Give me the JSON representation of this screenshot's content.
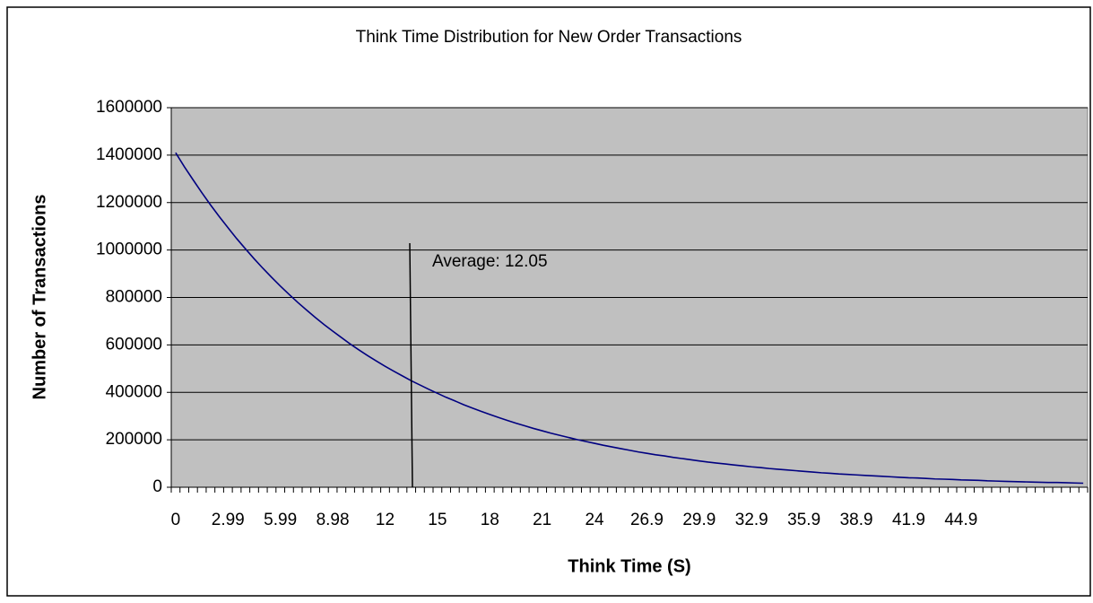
{
  "chart_data": {
    "type": "line",
    "title": "Think Time Distribution for New Order Transactions",
    "x_label": "Think Time (S)",
    "y_label": "Number of Transactions",
    "annotation": "Average: 12.05",
    "categories": [
      "0",
      null,
      null,
      null,
      null,
      null,
      "2.99",
      null,
      null,
      null,
      null,
      null,
      "5.99",
      null,
      null,
      null,
      null,
      null,
      "8.98",
      null,
      null,
      null,
      null,
      null,
      "12",
      null,
      null,
      null,
      null,
      null,
      "15",
      null,
      null,
      null,
      null,
      null,
      "18",
      null,
      null,
      null,
      null,
      null,
      "21",
      null,
      null,
      null,
      null,
      null,
      "24",
      null,
      null,
      null,
      null,
      null,
      "26.9",
      null,
      null,
      null,
      null,
      null,
      "29.9",
      null,
      null,
      null,
      null,
      null,
      "32.9",
      null,
      null,
      null,
      null,
      null,
      "35.9",
      null,
      null,
      null,
      null,
      null,
      "38.9",
      null,
      null,
      null,
      null,
      null,
      "41.9",
      null,
      null,
      null,
      null,
      null,
      "44.9",
      null,
      null,
      null,
      null,
      null,
      null,
      null,
      null,
      null,
      null,
      null,
      null,
      null,
      null
    ],
    "series": [
      {
        "color": "#000080",
        "values": [
          1410000,
          1351000,
          1296000,
          1242000,
          1190000,
          1141000,
          1094000,
          1048000,
          1005000,
          963000,
          923000,
          885000,
          848000,
          813000,
          779000,
          747000,
          716000,
          686000,
          658000,
          631000,
          604000,
          579000,
          555000,
          532000,
          510000,
          489000,
          469000,
          449000,
          431000,
          413000,
          396000,
          379000,
          364000,
          348000,
          334000,
          320000,
          307000,
          294000,
          282000,
          270000,
          259000,
          248000,
          238000,
          228000,
          219000,
          210000,
          201000,
          193000,
          185000,
          177000,
          170000,
          163000,
          156000,
          149000,
          143000,
          137000,
          132000,
          126000,
          121000,
          116000,
          111000,
          106000,
          102000,
          98000,
          94000,
          90000,
          86000,
          83000,
          79000,
          76000,
          73000,
          70000,
          67000,
          64000,
          61000,
          59000,
          56000,
          54000,
          52000,
          50000,
          48000,
          46000,
          44000,
          42000,
          40000,
          39000,
          37000,
          35000,
          34000,
          33000,
          31000,
          30000,
          29000,
          27000,
          26000,
          25000,
          24000,
          23000,
          22000,
          21000,
          20000,
          20000,
          19000,
          18000,
          17000
        ]
      }
    ],
    "ylim": [
      0,
      1600000
    ],
    "yticks": [
      0,
      200000,
      400000,
      600000,
      800000,
      1000000,
      1200000,
      1400000,
      1600000
    ],
    "grid": true
  }
}
